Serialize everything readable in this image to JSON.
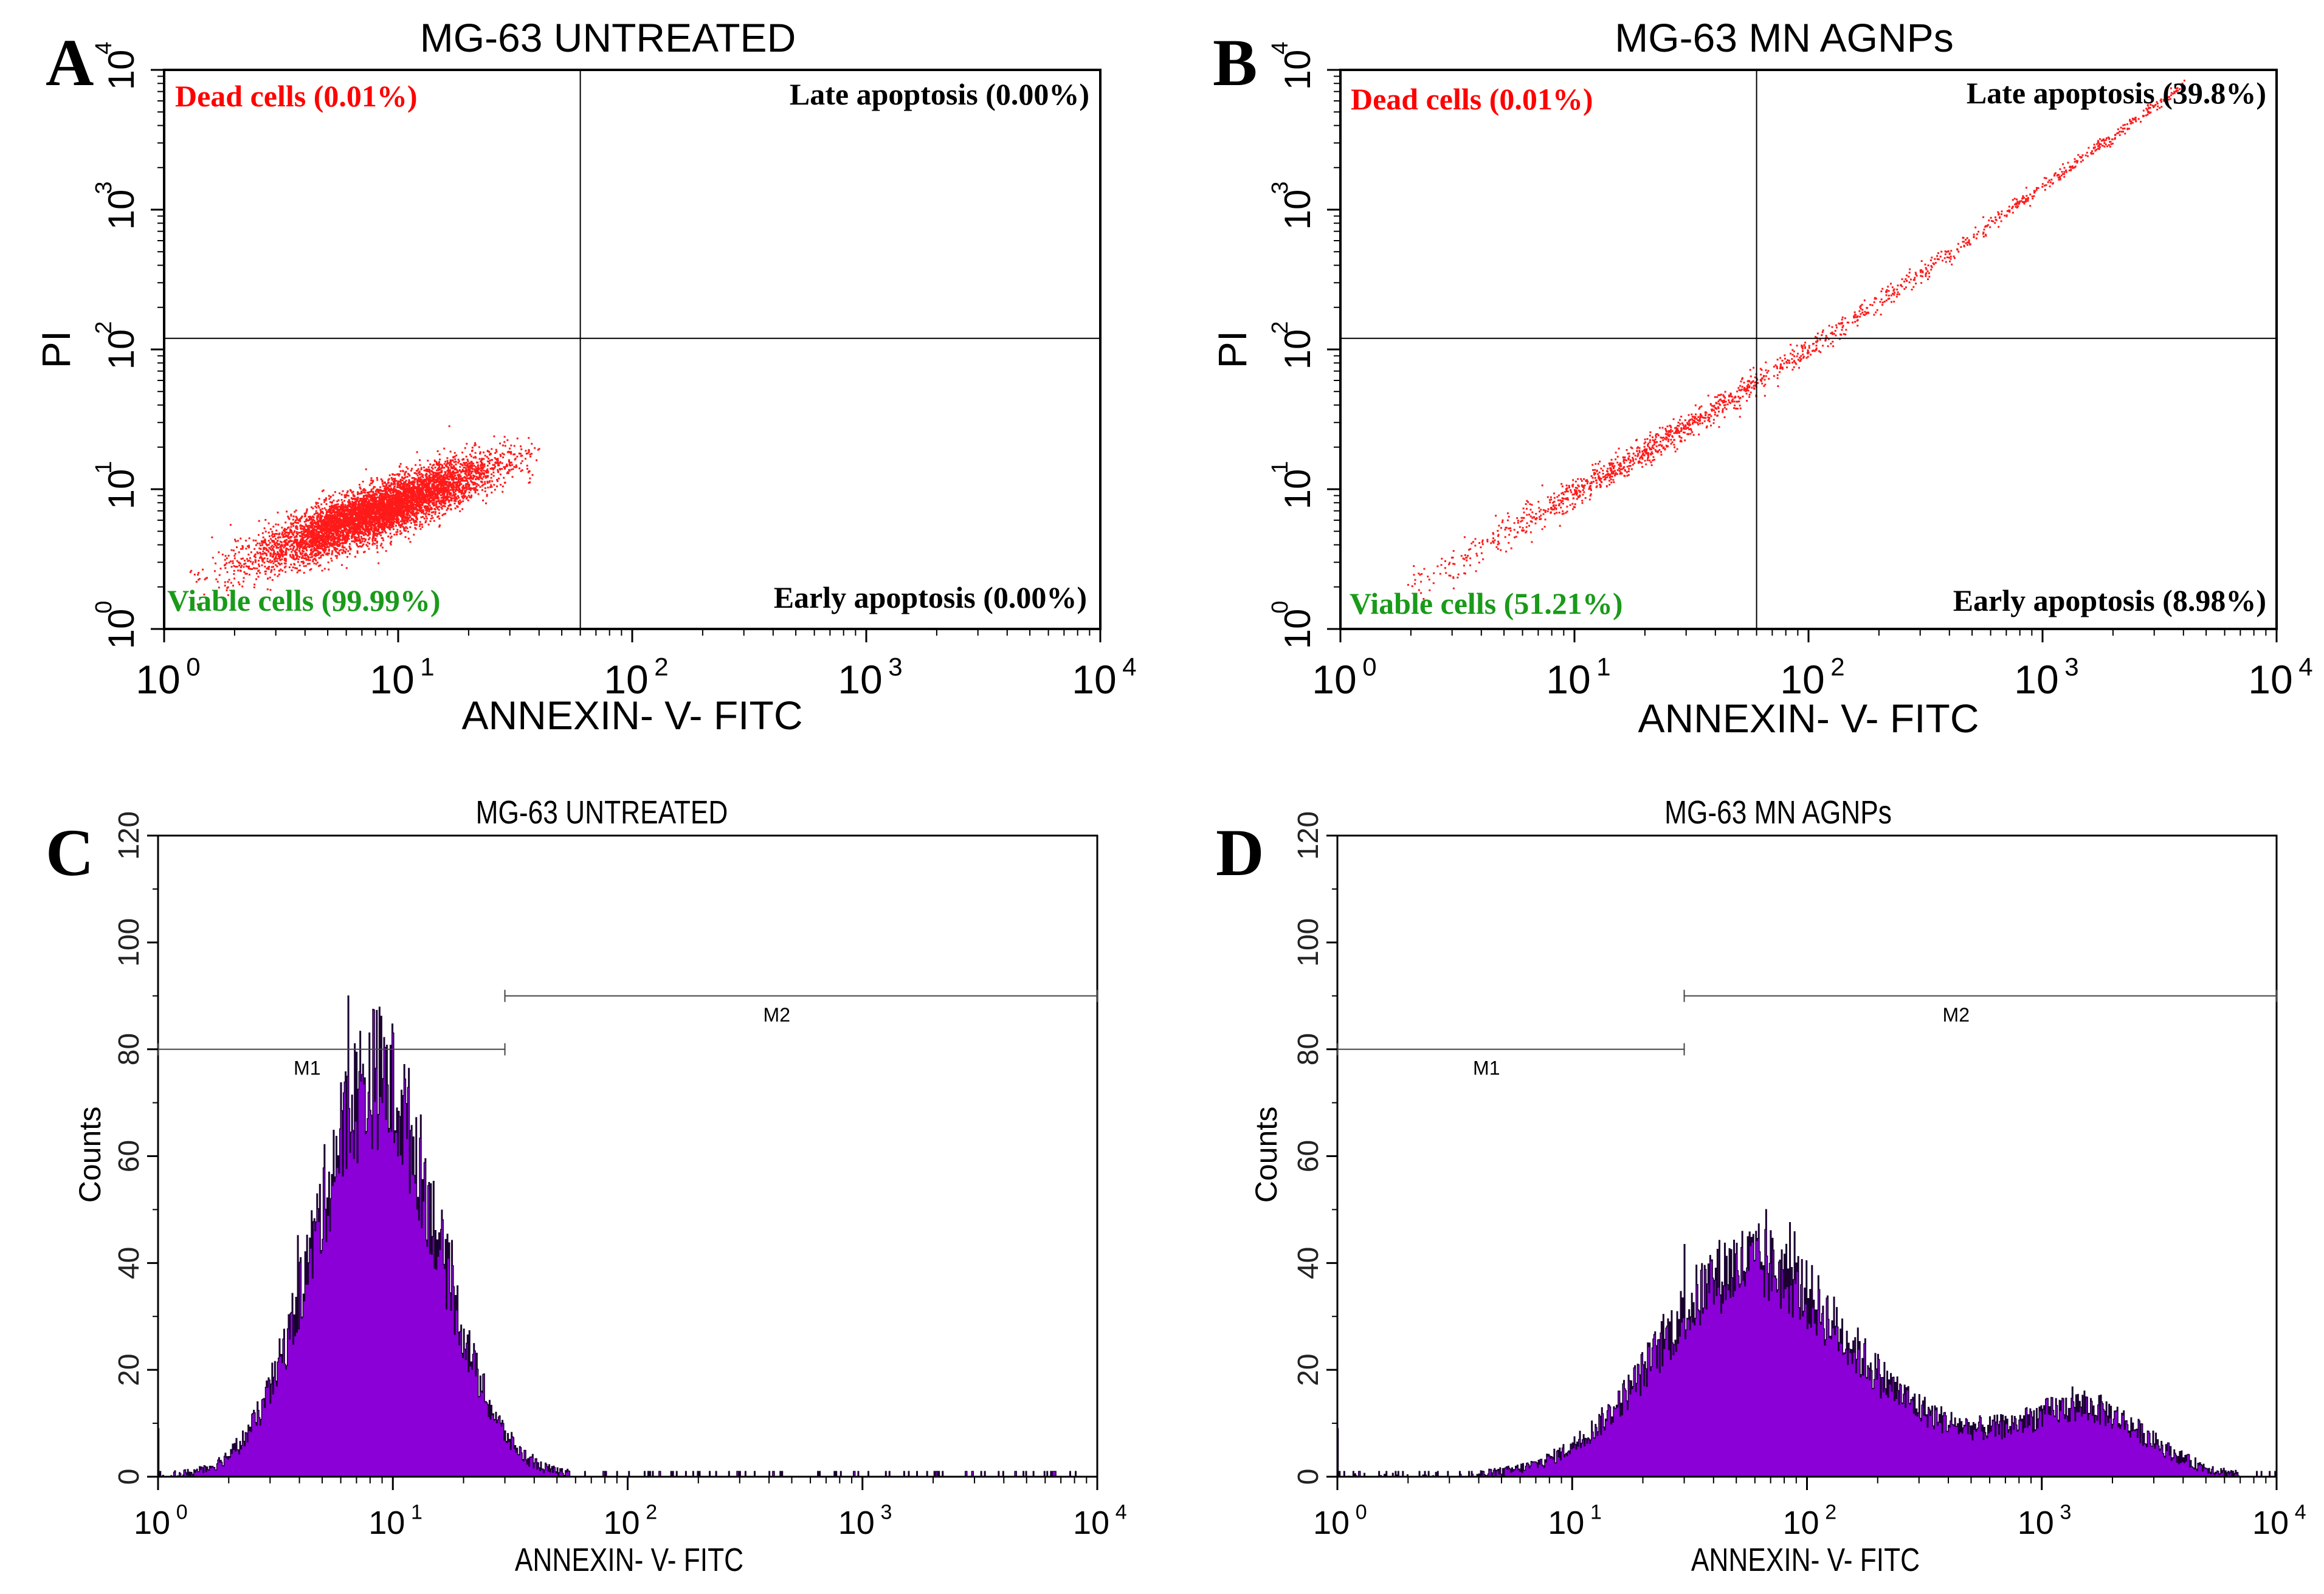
{
  "colors": {
    "dot": "#ff1a1a",
    "dead_label": "#ff0000",
    "viable_label": "#1a9a1a",
    "quadrant_label": "#000000",
    "histogram_fill": "#8a00d6",
    "histogram_edge": "#1a0030",
    "axis": "#000000"
  },
  "chart_data": [
    {
      "panel": "A",
      "type": "scatter",
      "title": "MG-63 UNTREATED",
      "xlabel": "ANNEXIN- V- FITC",
      "ylabel": "PI",
      "x_scale": "log",
      "y_scale": "log",
      "xlim": [
        1,
        10000
      ],
      "ylim": [
        1,
        10000
      ],
      "x_ticks": [
        "10",
        "10",
        "10",
        "10",
        "10"
      ],
      "x_tick_exponents": [
        "0",
        "1",
        "2",
        "3",
        "4"
      ],
      "y_ticks": [
        "10",
        "10",
        "10",
        "10",
        "10"
      ],
      "y_tick_exponents": [
        "0",
        "1",
        "2",
        "3",
        "4"
      ],
      "quadrant_gate": {
        "x": 60,
        "y": 120
      },
      "quadrants": {
        "upper_left": "Dead cells (0.01%)",
        "upper_right": "Late apoptosis (0.00%)",
        "lower_left": "Viable cells (99.99%)",
        "lower_right": "Early apoptosis (0.00%)"
      },
      "population": {
        "center_x": 8,
        "center_y": 7,
        "x_range": [
          1.2,
          35
        ],
        "y_range": [
          1.5,
          45
        ],
        "shape": "oval cloud along diagonal"
      }
    },
    {
      "panel": "B",
      "type": "scatter",
      "title": "MG-63 MN AGNPs",
      "xlabel": "ANNEXIN- V- FITC",
      "ylabel": "PI",
      "x_scale": "log",
      "y_scale": "log",
      "xlim": [
        1,
        10000
      ],
      "ylim": [
        1,
        10000
      ],
      "x_ticks": [
        "10",
        "10",
        "10",
        "10",
        "10"
      ],
      "x_tick_exponents": [
        "0",
        "1",
        "2",
        "3",
        "4"
      ],
      "y_ticks": [
        "10",
        "10",
        "10",
        "10",
        "10"
      ],
      "y_tick_exponents": [
        "0",
        "1",
        "2",
        "3",
        "4"
      ],
      "quadrant_gate": {
        "x": 60,
        "y": 120
      },
      "quadrants": {
        "upper_left": "Dead cells (0.01%)",
        "upper_right": "Late apoptosis (39.8%)",
        "lower_left": "Viable cells (51.21%)",
        "lower_right": "Early apoptosis (8.98%)"
      },
      "population": {
        "start": [
          2,
          2
        ],
        "end": [
          4000,
          8000
        ],
        "shape": "narrow diagonal streak"
      }
    },
    {
      "panel": "C",
      "type": "histogram",
      "title": "MG-63 UNTREATED",
      "xlabel": "ANNEXIN- V- FITC",
      "ylabel": "Counts",
      "x_scale": "log",
      "xlim": [
        1,
        10000
      ],
      "ylim": [
        0,
        120
      ],
      "x_ticks": [
        "10",
        "10",
        "10",
        "10",
        "10"
      ],
      "x_tick_exponents": [
        "0",
        "1",
        "2",
        "3",
        "4"
      ],
      "y_ticks": [
        "0",
        "20",
        "40",
        "60",
        "80",
        "100",
        "120"
      ],
      "markers": [
        {
          "label": "M1",
          "x_range": [
            1,
            30
          ],
          "y": 80
        },
        {
          "label": "M2",
          "x_range": [
            30,
            10000
          ],
          "y": 90
        }
      ],
      "peaks": [
        {
          "x": 8.5,
          "height": 75,
          "width_decades": 0.26
        }
      ],
      "peak_max": 90,
      "baseline_end": 30
    },
    {
      "panel": "D",
      "type": "histogram",
      "title": "MG-63 MN AGNPs",
      "xlabel": "ANNEXIN- V- FITC",
      "ylabel": "Counts",
      "x_scale": "log",
      "xlim": [
        1,
        10000
      ],
      "ylim": [
        0,
        120
      ],
      "x_ticks": [
        "10",
        "10",
        "10",
        "10",
        "10"
      ],
      "x_tick_exponents": [
        "0",
        "1",
        "2",
        "3",
        "4"
      ],
      "y_ticks": [
        "0",
        "20",
        "40",
        "60",
        "80",
        "100",
        "120"
      ],
      "markers": [
        {
          "label": "M1",
          "x_range": [
            1,
            30
          ],
          "y": 80
        },
        {
          "label": "M2",
          "x_range": [
            30,
            10000
          ],
          "y": 90
        }
      ],
      "peaks": [
        {
          "x": 55,
          "height": 38,
          "width_decades": 0.38
        },
        {
          "x": 1600,
          "height": 11,
          "width_decades": 0.25
        },
        {
          "x": 300,
          "height": 7,
          "width_decades": 0.45
        }
      ],
      "peak_max": 50,
      "baseline_end": 6000
    }
  ]
}
